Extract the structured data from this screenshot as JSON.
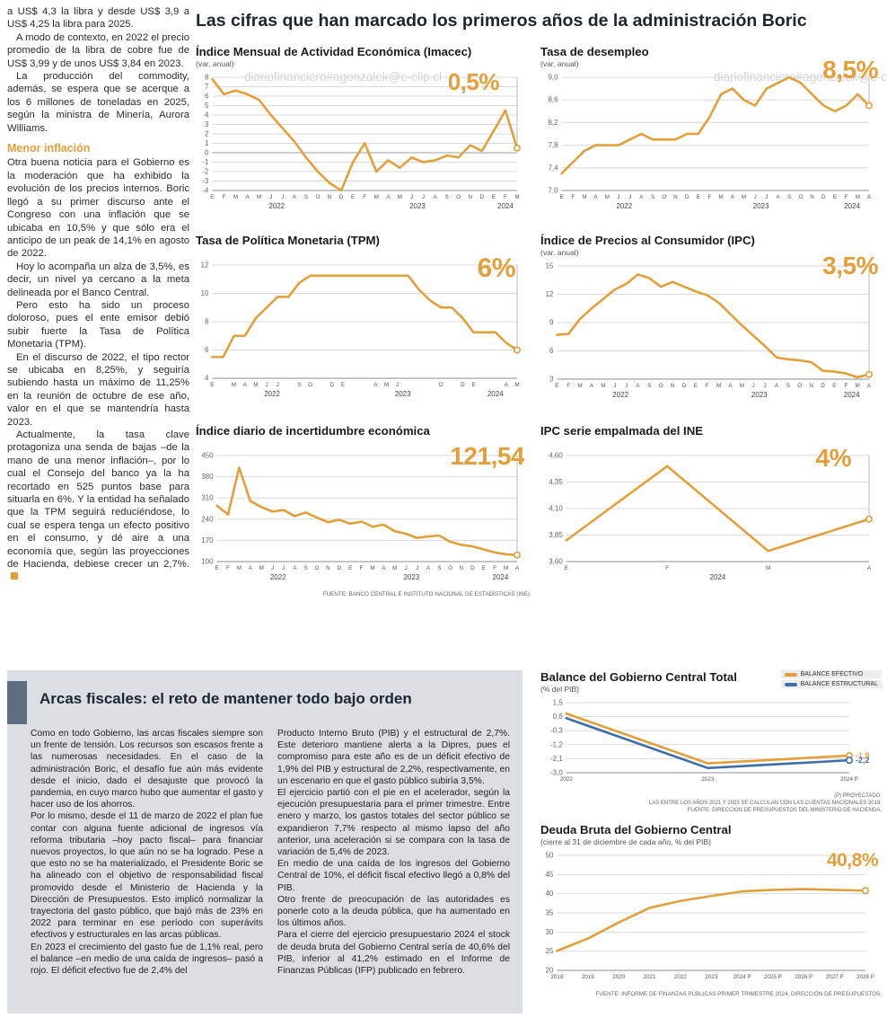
{
  "watermark": "diariofinanciero#agonzalek@e-clip.cl",
  "header": {
    "title": "Las cifras que han marcado los primeros años de la administración Boric"
  },
  "left_article": {
    "paragraphs": [
      "a US$ 4,3 la libra y desde US$ 3,9 a US$ 4,25 la libra para 2025.",
      "A modo de contexto, en 2022 el precio promedio de la libra de cobre fue de US$ 3,99 y de unos US$ 3,84 en 2023.",
      "La producción del commodity, además, se espera que se acerque a los 6 millones de toneladas en 2025, según la ministra de Minería, Aurora Williams."
    ],
    "subhead": "Menor inflación",
    "paragraphs2": [
      "Otra buena noticia para el Gobierno es la moderación que ha exhibido la evolución de los precios internos. Boric llegó a su primer discurso ante el Congreso con una inflación que se ubicaba en 10,5% y que sólo era el anticipo de un peak de 14,1% en agosto de 2022.",
      "Hoy lo acompaña un alza de 3,5%, es decir, un nivel ya cercano a la meta delineada por el Banco Central.",
      "Pero esto ha sido un proceso doloroso, pues el ente emisor debió subir fuerte la Tasa de Política Monetaria (TPM).",
      "En el discurso de 2022, el tipo rector se ubicaba en 8,25%, y seguiría subiendo hasta un máximo de 11,25% en la reunión de octubre de ese año, valor en el que se mantendría hasta 2023.",
      "Actualmente, la tasa clave protagoniza una senda de bajas –de la mano de una menor inflación–, por lo cual el Consejo del banco ya la ha recortado en 525 puntos base para situarla en 6%. Y la entidad ha señalado que la TPM seguirá reduciéndose, lo cual se espera tenga un efecto positivo en el consumo, y dé aire a una economía que, según las proyecciones de Hacienda, debiese crecer un 2,7%."
    ]
  },
  "fiscal_box": {
    "title": "Arcas fiscales: el reto de mantener todo bajo orden",
    "col1": [
      "Como en todo Gobierno, las arcas fiscales siempre son un frente de tensión. Los recursos son escasos frente a las numerosas necesidades. En el caso de la administración Boric, el desafío fue aún más evidente desde el inicio, dado el desajuste que provocó la pandemia, en cuyo marco hubo que aumentar el gasto y hacer uso de los ahorros.",
      "Por lo mismo, desde el 11 de marzo de 2022 el plan fue contar con alguna fuente adicional de ingresos vía reforma tributaria –hoy pacto fiscal– para financiar nuevos proyectos, lo que aún no se ha logrado. Pese a que esto no se ha materializado, el Presidente Boric se ha alineado con el objetivo de responsabilidad fiscal promovido desde el Ministerio de Hacienda y la Dirección de Presupuestos. Esto implicó normalizar la trayectoria del gasto público, que bajó más de 23% en 2022 para terminar en ese período con superávits efectivos y estructurales en las arcas públicas.",
      "En 2023 el crecimiento del gasto fue de 1,1% real, pero el balance –en medio de una caída de ingresos– pasó a rojo. El déficit efectivo fue de 2,4% del"
    ],
    "col2": [
      "Producto Interno Bruto (PIB) y el estructural de 2,7%. Este deterioro mantiene alerta a la Dipres, pues el compromiso para este año es de un déficit efectivo de 1,9% del PIB y estructural de 2,2%, respectivamente, en un escenario en que el gasto público subiría 3,5%.",
      "El ejercicio partió con el pie en el acelerador, según la ejecución presupuestaria para el primer trimestre. Entre enero y marzo, los gastos totales del sector público se expandieron 7,7% respecto al mismo lapso del año anterior, una aceleración si se compara con la tasa de variación de 5,4% de 2023.",
      "En medio de una caída de los ingresos del Gobierno Central de 10%, el déficit fiscal efectivo llegó a 0,8% del PIB.",
      "Otro frente de preocupación de las autoridades es ponerle coto a la deuda pública, que ha aumentado en los últimos años.",
      "Para el cierre del ejercicio presupuestario 2024 el stock de deuda bruta del Gobierno Central sería de 40,6% del PIB, inferior al 41,2% estimado en el Informe de Finanzas Públicas (IFP) publicado en febrero."
    ]
  },
  "colors": {
    "accent": "#E1A03C",
    "blue": "#3E6FA6"
  },
  "chart_data": [
    {
      "type": "line",
      "title": "Índice Mensual de Actividad Económica (Imacec)",
      "subtitle": "(var. anual)",
      "big_label": "0,5%",
      "y_ticks": [
        "8",
        "7",
        "6",
        "5",
        "4",
        "3",
        "2",
        "1",
        "0",
        "-1",
        "-2",
        "-3",
        "-4"
      ],
      "y_min": -4,
      "y_max": 8,
      "zero_line": true,
      "x_labels": [
        "E",
        "F",
        "M",
        "A",
        "M",
        "J",
        "J",
        "A",
        "S",
        "O",
        "N",
        "D",
        "E",
        "F",
        "M",
        "A",
        "M",
        "J",
        "J",
        "A",
        "S",
        "O",
        "N",
        "D",
        "E",
        "F",
        "M"
      ],
      "year_ranges": [
        {
          "label": "2022",
          "from": 0,
          "to": 11
        },
        {
          "label": "2023",
          "from": 12,
          "to": 23
        },
        {
          "label": "2024",
          "from": 24,
          "to": 26
        }
      ],
      "series": [
        {
          "name": "Imacec",
          "color": "accent",
          "values": [
            7.8,
            6.2,
            6.6,
            6.2,
            5.6,
            4.0,
            2.6,
            1.2,
            -0.5,
            -2.0,
            -3.2,
            -4.0,
            -1.0,
            1.0,
            -2.0,
            -0.8,
            -1.6,
            -0.5,
            -1.0,
            -0.8,
            -0.3,
            -0.5,
            0.8,
            0.2,
            2.3,
            4.5,
            0.5
          ]
        }
      ],
      "end_marker": true,
      "drop_line": true
    },
    {
      "type": "line",
      "title": "Tasa de desempleo",
      "subtitle": "(var. anual)",
      "big_label": "8,5%",
      "y_ticks": [
        "9,0",
        "8,6",
        "8,2",
        "7,8",
        "7,4",
        "7,0"
      ],
      "y_min": 7.0,
      "y_max": 9.0,
      "x_labels": [
        "E",
        "F",
        "M",
        "A",
        "M",
        "J",
        "J",
        "A",
        "S",
        "O",
        "N",
        "D",
        "E",
        "F",
        "M",
        "A",
        "M",
        "J",
        "J",
        "A",
        "S",
        "O",
        "N",
        "D",
        "E",
        "F",
        "M",
        "A"
      ],
      "year_ranges": [
        {
          "label": "2022",
          "from": 0,
          "to": 11
        },
        {
          "label": "2023",
          "from": 12,
          "to": 23
        },
        {
          "label": "2024",
          "from": 24,
          "to": 27
        }
      ],
      "series": [
        {
          "name": "Desempleo",
          "color": "accent",
          "values": [
            7.3,
            7.5,
            7.7,
            7.8,
            7.8,
            7.8,
            7.9,
            8.0,
            7.9,
            7.9,
            7.9,
            8.0,
            8.0,
            8.3,
            8.7,
            8.8,
            8.6,
            8.5,
            8.8,
            8.9,
            9.0,
            8.9,
            8.7,
            8.5,
            8.4,
            8.5,
            8.7,
            8.5
          ]
        }
      ],
      "end_marker": true,
      "drop_line": true
    },
    {
      "type": "line",
      "title": "Tasa de Política Monetaria (TPM)",
      "subtitle": "",
      "big_label": "6%",
      "y_ticks": [
        "12",
        "10",
        "8",
        "6",
        "4"
      ],
      "y_min": 4,
      "y_max": 12,
      "x_labels": [
        "E",
        "",
        "M",
        "A",
        "M",
        "J",
        "J",
        "",
        "S",
        "O",
        "",
        "D",
        "E",
        "",
        "",
        "A",
        "M",
        "J",
        "",
        "",
        "",
        "O",
        "",
        "D",
        "E",
        "",
        "",
        "A",
        "M"
      ],
      "year_ranges": [
        {
          "label": "2022",
          "from": 0,
          "to": 11
        },
        {
          "label": "2023",
          "from": 12,
          "to": 23
        },
        {
          "label": "2024",
          "from": 24,
          "to": 28
        }
      ],
      "series": [
        {
          "name": "TPM",
          "color": "accent",
          "values": [
            5.5,
            5.5,
            7.0,
            7.0,
            8.25,
            9.0,
            9.75,
            9.75,
            10.75,
            11.25,
            11.25,
            11.25,
            11.25,
            11.25,
            11.25,
            11.25,
            11.25,
            11.25,
            11.25,
            10.25,
            9.5,
            9.0,
            9.0,
            8.25,
            7.25,
            7.25,
            7.25,
            6.5,
            6.0
          ]
        }
      ],
      "end_marker": true,
      "drop_line": true
    },
    {
      "type": "line",
      "title": "Índice de Precios al Consumidor (IPC)",
      "subtitle": "(var. anual)",
      "big_label": "3,5%",
      "y_ticks": [
        "15",
        "12",
        "9",
        "6",
        "3"
      ],
      "y_min": 3,
      "y_max": 15,
      "x_labels": [
        "E",
        "F",
        "M",
        "A",
        "M",
        "J",
        "J",
        "A",
        "S",
        "O",
        "N",
        "D",
        "E",
        "F",
        "M",
        "A",
        "M",
        "J",
        "J",
        "A",
        "S",
        "O",
        "N",
        "D",
        "E",
        "F",
        "M",
        "A"
      ],
      "year_ranges": [
        {
          "label": "2022",
          "from": 0,
          "to": 11
        },
        {
          "label": "2023",
          "from": 12,
          "to": 23
        },
        {
          "label": "2024",
          "from": 24,
          "to": 27
        }
      ],
      "series": [
        {
          "name": "IPC",
          "color": "accent",
          "values": [
            7.7,
            7.8,
            9.4,
            10.5,
            11.5,
            12.5,
            13.1,
            14.1,
            13.7,
            12.8,
            13.3,
            12.8,
            12.3,
            11.9,
            11.1,
            9.9,
            8.7,
            7.6,
            6.5,
            5.3,
            5.1,
            5.0,
            4.8,
            3.9,
            3.8,
            3.6,
            3.2,
            3.5
          ]
        }
      ],
      "end_marker": true,
      "drop_line": true
    },
    {
      "type": "line",
      "title": "Índice diario de incertidumbre económica",
      "subtitle": "",
      "big_label": "121,54",
      "source": "FUENTE: BANCO CENTRAL E INSTITUTO NACIONAL DE ESTADÍSTICAS (INE)",
      "y_ticks": [
        "450",
        "380",
        "310",
        "240",
        "170",
        "100"
      ],
      "y_min": 100,
      "y_max": 450,
      "x_labels": [
        "E",
        "F",
        "M",
        "A",
        "M",
        "J",
        "J",
        "A",
        "S",
        "O",
        "N",
        "D",
        "E",
        "F",
        "M",
        "A",
        "M",
        "J",
        "J",
        "A",
        "S",
        "O",
        "N",
        "D",
        "E",
        "F",
        "M",
        "A"
      ],
      "year_ranges": [
        {
          "label": "2022",
          "from": 0,
          "to": 11
        },
        {
          "label": "2023",
          "from": 12,
          "to": 23
        },
        {
          "label": "2024",
          "from": 24,
          "to": 27
        }
      ],
      "series": [
        {
          "name": "Incertidumbre",
          "color": "accent",
          "values": [
            285,
            255,
            410,
            300,
            280,
            265,
            270,
            250,
            262,
            245,
            230,
            238,
            225,
            232,
            215,
            222,
            200,
            192,
            178,
            183,
            186,
            165,
            155,
            150,
            140,
            130,
            124,
            121.54
          ]
        }
      ],
      "end_marker": true,
      "drop_line": true
    },
    {
      "type": "line",
      "title": "IPC serie empalmada del INE",
      "subtitle": "",
      "big_label": "4%",
      "y_ticks": [
        "4,60",
        "4,35",
        "4,10",
        "3,85",
        "3,60"
      ],
      "y_min": 3.6,
      "y_max": 4.6,
      "x_labels": [
        "E",
        "F",
        "M",
        "A"
      ],
      "year_ranges": [
        {
          "label": "2024",
          "from": 0,
          "to": 3
        }
      ],
      "series": [
        {
          "name": "IPC empalmado",
          "color": "accent",
          "values": [
            3.8,
            4.5,
            3.7,
            4.0
          ]
        }
      ],
      "end_marker": true,
      "drop_line": true
    },
    {
      "type": "line",
      "title": "Balance del Gobierno Central Total",
      "subtitle": "(% del PIB)",
      "y_ticks": [
        "1,5",
        "0,6",
        "-0,3",
        "-1,2",
        "-2,1",
        "-3,0"
      ],
      "y_min": -3.0,
      "y_max": 1.5,
      "margin_right": 34,
      "x_labels": [
        "2022",
        "2023",
        "2024 P"
      ],
      "series": [
        {
          "name": "BALANCE EFECTIVO",
          "color": "accent",
          "values": [
            0.8,
            -2.4,
            -1.9
          ],
          "end_label": "-1,9"
        },
        {
          "name": "BALANCE ESTRUCTURAL",
          "color": "blue",
          "values": [
            0.5,
            -2.7,
            -2.2
          ],
          "end_label": "-2,2"
        }
      ],
      "end_marker": true,
      "notes": [
        "(P) PROYECTADO.",
        "LAS ENTRE LOS AÑOS 2021 Y 2023 SE CALCULAN CON LAS CUENTAS NACIONALES 2018.",
        "FUENTE: DIRECCIÓN DE PRESUPUESTOS DEL MINISTERIO DE HACIENDA."
      ]
    },
    {
      "type": "line",
      "title": "Deuda Bruta del Gobierno Central",
      "subtitle": "(cierre al 31 de diciembre de cada año, % del PIB)",
      "big_label": "40,8%",
      "source": "FUENTE: INFORME DE FINANZAS PÚBLICAS PRIMER TRIMESTRE 2024, DIRECCIÓN DE PRESUPUESTOS.",
      "y_ticks": [
        "50",
        "45",
        "40",
        "35",
        "30",
        "25",
        "20"
      ],
      "y_min": 20,
      "y_max": 50,
      "margin_right": 16,
      "x_labels": [
        "2018",
        "2019",
        "2020",
        "2021",
        "2022",
        "2023",
        "2024 P",
        "2025 P",
        "2026 P",
        "2027 P",
        "2028 P"
      ],
      "series": [
        {
          "name": "Deuda bruta",
          "color": "accent",
          "values": [
            25.1,
            28.3,
            32.5,
            36.3,
            38.1,
            39.4,
            40.6,
            41.0,
            41.2,
            41.0,
            40.8
          ]
        }
      ],
      "end_marker": true
    }
  ]
}
